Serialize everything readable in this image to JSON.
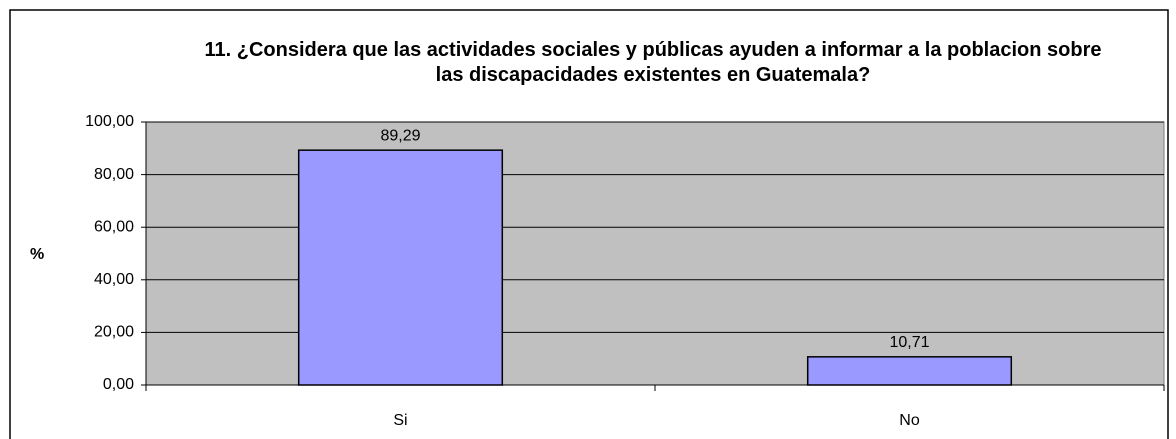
{
  "chart_data": {
    "type": "bar",
    "title": "11. ¿Considera que las actividades sociales y públicas ayuden a  informar a la poblacion sobre las discapacidades existentes en Guatemala?",
    "y_label": "%",
    "categories": [
      "Si",
      "No"
    ],
    "values": [
      89.29,
      10.71
    ],
    "value_labels": [
      "89,29",
      "10,71"
    ],
    "color": "#9999ff",
    "ylim": [
      0,
      100
    ],
    "yticks": [
      {
        "value": 0,
        "label": "0,00"
      },
      {
        "value": 20,
        "label": "20,00"
      },
      {
        "value": 40,
        "label": "40,00"
      },
      {
        "value": 60,
        "label": "60,00"
      },
      {
        "value": 80,
        "label": "80,00"
      },
      {
        "value": 100,
        "label": "100,00"
      }
    ],
    "grid": true
  }
}
